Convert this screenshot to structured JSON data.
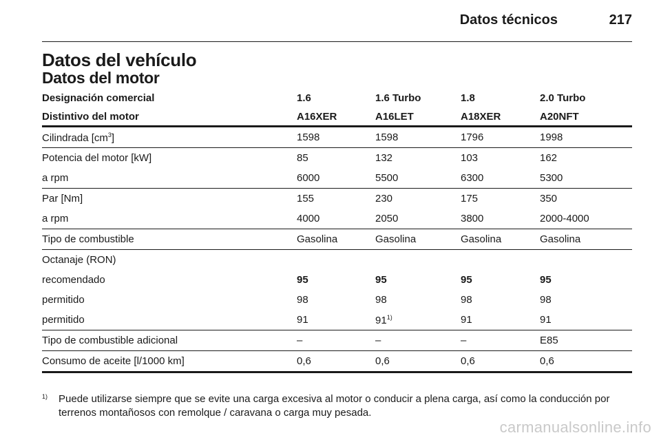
{
  "header": {
    "section_title": "Datos técnicos",
    "page_number": "217"
  },
  "headings": {
    "h1": "Datos del vehículo",
    "h2": "Datos del motor"
  },
  "table": {
    "header_rows": [
      [
        "Designación comercial",
        "1.6",
        "1.6 Turbo",
        "1.8",
        "2.0 Turbo"
      ],
      [
        "Distintivo del motor",
        "A16XER",
        "A16LET",
        "A18XER",
        "A20NFT"
      ]
    ],
    "cilindrada": {
      "label_prefix": "Cilindrada [cm",
      "label_sup": "3",
      "label_suffix": "]",
      "values": [
        "1598",
        "1598",
        "1796",
        "1998"
      ]
    },
    "potencia": {
      "label": "Potencia del motor [kW]",
      "values": [
        "85",
        "132",
        "103",
        "162"
      ]
    },
    "potencia_rpm": {
      "label": "a rpm",
      "values": [
        "6000",
        "5500",
        "6300",
        "5300"
      ]
    },
    "par": {
      "label": "Par [Nm]",
      "values": [
        "155",
        "230",
        "175",
        "350"
      ]
    },
    "par_rpm": {
      "label": "a rpm",
      "values": [
        "4000",
        "2050",
        "3800",
        "2000-4000"
      ]
    },
    "combustible": {
      "label": "Tipo de combustible",
      "values": [
        "Gasolina",
        "Gasolina",
        "Gasolina",
        "Gasolina"
      ]
    },
    "octanaje": {
      "label": "Octanaje (RON)"
    },
    "recomendado": {
      "label": "recomendado",
      "values": [
        "95",
        "95",
        "95",
        "95"
      ]
    },
    "permitido_1": {
      "label": "permitido",
      "values": [
        "98",
        "98",
        "98",
        "98"
      ]
    },
    "permitido_2": {
      "label": "permitido",
      "values": [
        "91",
        "91",
        "91",
        "91"
      ],
      "footnote_mark": "1)"
    },
    "adicional": {
      "label": "Tipo de combustible adicional",
      "values": [
        "–",
        "–",
        "–",
        "E85"
      ]
    },
    "aceite": {
      "label": "Consumo de aceite [l/1000 km]",
      "values": [
        "0,6",
        "0,6",
        "0,6",
        "0,6"
      ]
    }
  },
  "footnote": {
    "mark": "1)",
    "text": "Puede utilizarse siempre que se evite una carga excesiva al motor o conducir a plena carga, así como la conducción por terrenos montañosos con remolque / caravana o carga muy pesada."
  },
  "watermark": "carmanualsonline.info"
}
